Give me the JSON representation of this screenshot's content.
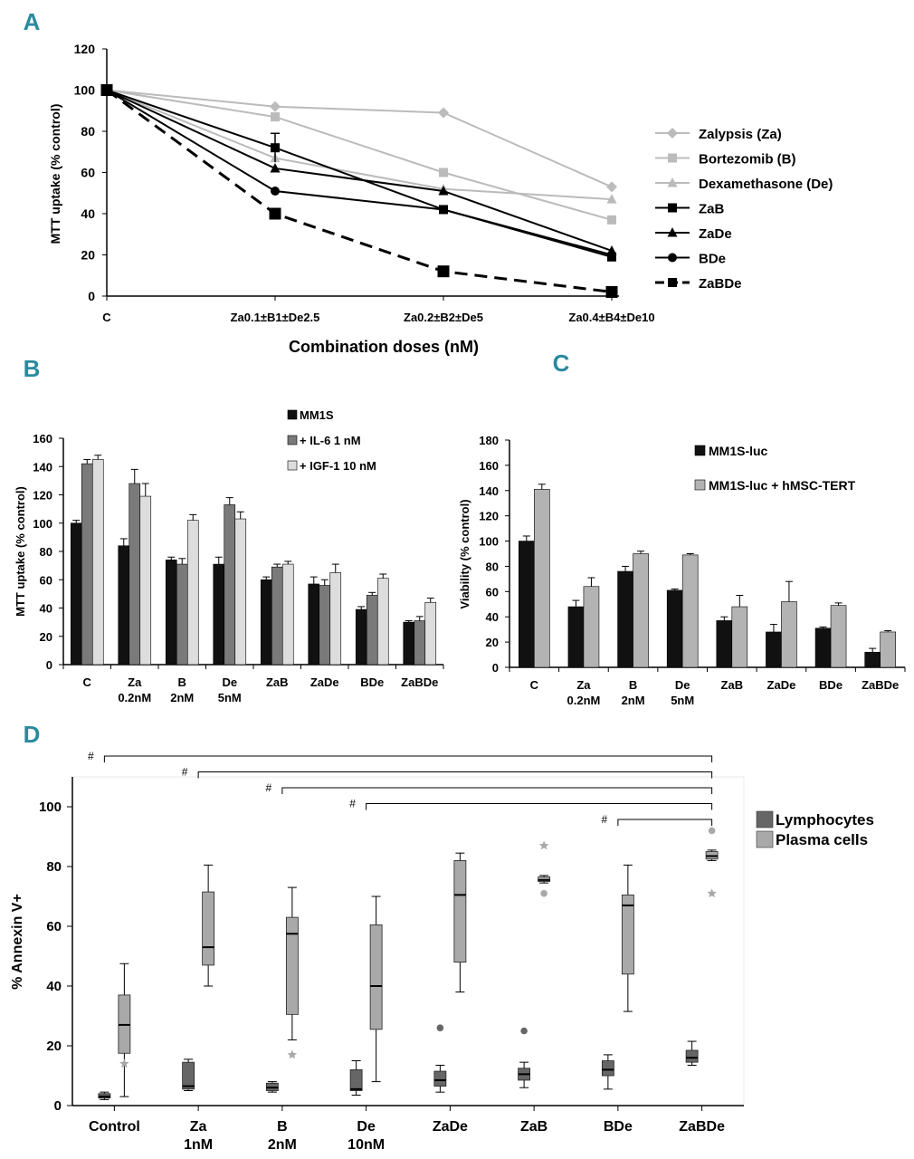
{
  "panels": {
    "A": "A",
    "B": "B",
    "C": "C",
    "D": "D"
  },
  "colors": {
    "black": "#000000",
    "light_grey": "#bbbbbb",
    "mid_grey": "#999999",
    "bar_black": "#111111",
    "bar_dark_grey": "#7a7a7a",
    "bar_light_grey": "#dddddd",
    "bar_mid_grey": "#b3b3b3",
    "box_dark": "#666666",
    "box_light": "#a9a9a9",
    "panel_label": "#2a8a9e"
  },
  "chart_data": [
    {
      "id": "A",
      "type": "line",
      "title": "",
      "xlabel": "Combination doses (nM)",
      "ylabel": "MTT uptake  (% control)",
      "categories": [
        "C",
        "Za0.1±B1±De2.5",
        "Za0.2±B2±De5",
        "Za0.4±B4±De10"
      ],
      "ylim": [
        0,
        120
      ],
      "yticks": [
        0,
        20,
        40,
        60,
        80,
        100,
        120
      ],
      "legend_position": "right",
      "series": [
        {
          "name": "Zalypsis (Za)",
          "values": [
            100,
            92,
            89,
            53
          ],
          "color": "#bbbbbb",
          "marker": "diamond",
          "dashed": false,
          "errors": [
            0,
            0,
            0,
            0
          ]
        },
        {
          "name": "Bortezomib (B)",
          "values": [
            100,
            87,
            60,
            37
          ],
          "color": "#bbbbbb",
          "marker": "square",
          "dashed": false,
          "errors": [
            0,
            0,
            0,
            0
          ]
        },
        {
          "name": "Dexamethasone (De)",
          "values": [
            100,
            67,
            52,
            47
          ],
          "color": "#bbbbbb",
          "marker": "triangle",
          "dashed": false,
          "errors": [
            0,
            0,
            0,
            0
          ]
        },
        {
          "name": "ZaB",
          "values": [
            100,
            72,
            42,
            19
          ],
          "color": "#000000",
          "marker": "square",
          "dashed": false,
          "errors": [
            0,
            7,
            0,
            0
          ]
        },
        {
          "name": "ZaDe",
          "values": [
            100,
            62,
            51,
            22
          ],
          "color": "#000000",
          "marker": "triangle",
          "dashed": false,
          "errors": [
            0,
            0,
            0,
            0
          ]
        },
        {
          "name": "BDe",
          "values": [
            100,
            51,
            42,
            20
          ],
          "color": "#000000",
          "marker": "circle",
          "dashed": false,
          "errors": [
            0,
            0,
            0,
            0
          ]
        },
        {
          "name": "ZaBDe",
          "values": [
            100,
            40,
            12,
            2
          ],
          "color": "#000000",
          "marker": "square",
          "dashed": true,
          "errors": [
            0,
            0,
            0,
            0
          ]
        }
      ]
    },
    {
      "id": "B",
      "type": "bar",
      "title": "",
      "xlabel": "",
      "ylabel": "MTT uptake (% control)",
      "categories": [
        [
          "C"
        ],
        [
          "Za",
          "0.2nM"
        ],
        [
          "B",
          "2nM"
        ],
        [
          "De",
          "5nM"
        ],
        [
          "ZaB"
        ],
        [
          "ZaDe"
        ],
        [
          "BDe"
        ],
        [
          "ZaBDe"
        ]
      ],
      "ylim": [
        0,
        160
      ],
      "yticks": [
        0,
        20,
        40,
        60,
        80,
        100,
        120,
        140,
        160
      ],
      "legend_position": "top-center",
      "series": [
        {
          "name": "MM1S",
          "values": [
            100,
            84,
            74,
            71,
            60,
            57,
            39,
            30
          ],
          "errors": [
            2,
            5,
            2,
            5,
            2,
            5,
            2,
            1
          ],
          "color": "#111111"
        },
        {
          "name": "+ IL-6 1 nM",
          "values": [
            142,
            128,
            71,
            113,
            69,
            56,
            49,
            31
          ],
          "errors": [
            3,
            10,
            4,
            5,
            2,
            4,
            2,
            3
          ],
          "color": "#7a7a7a"
        },
        {
          "name": "+ IGF-1 10 nM",
          "values": [
            145,
            119,
            102,
            103,
            71,
            65,
            61,
            44
          ],
          "errors": [
            3,
            9,
            4,
            5,
            2,
            6,
            3,
            3
          ],
          "color": "#dddddd"
        }
      ]
    },
    {
      "id": "C",
      "type": "bar",
      "title": "",
      "xlabel": "",
      "ylabel": "Viability (%  control)",
      "categories": [
        [
          "C"
        ],
        [
          "Za",
          "0.2nM"
        ],
        [
          "B",
          "2nM"
        ],
        [
          "De",
          "5nM"
        ],
        [
          "ZaB"
        ],
        [
          "ZaDe"
        ],
        [
          "BDe"
        ],
        [
          "ZaBDe"
        ]
      ],
      "ylim": [
        0,
        180
      ],
      "yticks": [
        0,
        20,
        40,
        60,
        80,
        100,
        120,
        140,
        160,
        180
      ],
      "legend_position": "top-right",
      "series": [
        {
          "name": "MM1S-luc",
          "values": [
            100,
            48,
            76,
            61,
            37,
            28,
            31,
            12
          ],
          "errors": [
            4,
            5,
            4,
            1,
            3,
            6,
            1,
            3
          ],
          "color": "#111111"
        },
        {
          "name": "MM1S-luc + hMSC-TERT",
          "values": [
            141,
            64,
            90,
            89,
            48,
            52,
            49,
            28
          ],
          "errors": [
            4,
            7,
            2,
            1,
            9,
            16,
            2,
            1
          ],
          "color": "#b3b3b3"
        }
      ]
    },
    {
      "id": "D",
      "type": "box",
      "title": "",
      "xlabel": "",
      "ylabel": "% Annexin V+",
      "categories": [
        [
          "Control"
        ],
        [
          "Za",
          "1nM"
        ],
        [
          "B",
          "2nM"
        ],
        [
          "De",
          "10nM"
        ],
        [
          "ZaDe"
        ],
        [
          "ZaB"
        ],
        [
          "BDe"
        ],
        [
          "ZaBDe"
        ]
      ],
      "ylim": [
        0,
        110
      ],
      "yticks": [
        0,
        20,
        40,
        60,
        80,
        100
      ],
      "legend_position": "top-right",
      "series": [
        {
          "name": "Lymphocytes",
          "color": "#666666",
          "boxes": [
            {
              "min": 2,
              "q1": 2.5,
              "median": 3,
              "q3": 4,
              "max": 4.5
            },
            {
              "min": 5,
              "q1": 5.5,
              "median": 6.5,
              "q3": 14.5,
              "max": 15.5
            },
            {
              "min": 4.5,
              "q1": 5,
              "median": 6,
              "q3": 7.5,
              "max": 8
            },
            {
              "min": 3.5,
              "q1": 5,
              "median": 5.5,
              "q3": 12,
              "max": 15
            },
            {
              "min": 4.5,
              "q1": 6.5,
              "median": 8.5,
              "q3": 11.5,
              "max": 13.5
            },
            {
              "min": 6,
              "q1": 8.5,
              "median": 10.5,
              "q3": 12.5,
              "max": 14.5
            },
            {
              "min": 5.5,
              "q1": 10,
              "median": 12,
              "q3": 15,
              "max": 17
            },
            {
              "min": 13.5,
              "q1": 14.5,
              "median": 16,
              "q3": 18.5,
              "max": 21.5
            }
          ],
          "outliers": [
            [],
            [],
            [],
            [],
            [
              {
                "value": 26,
                "marker": "circle"
              }
            ],
            [
              {
                "value": 25,
                "marker": "circle"
              }
            ],
            [],
            []
          ]
        },
        {
          "name": "Plasma cells",
          "color": "#a9a9a9",
          "boxes": [
            {
              "min": 3,
              "q1": 17.5,
              "median": 27,
              "q3": 37,
              "max": 47.5
            },
            {
              "min": 40,
              "q1": 47,
              "median": 53,
              "q3": 71.5,
              "max": 80.5
            },
            {
              "min": 22,
              "q1": 30.5,
              "median": 57.5,
              "q3": 63,
              "max": 73
            },
            {
              "min": 8,
              "q1": 25.5,
              "median": 40,
              "q3": 60.5,
              "max": 70
            },
            {
              "min": 38,
              "q1": 48,
              "median": 70.5,
              "q3": 82,
              "max": 84.5
            },
            {
              "min": 74.5,
              "q1": 75,
              "median": 75.5,
              "q3": 76.5,
              "max": 77
            },
            {
              "min": 31.5,
              "q1": 44,
              "median": 67,
              "q3": 70.5,
              "max": 80.5
            },
            {
              "min": 82,
              "q1": 82.5,
              "median": 83.5,
              "q3": 85,
              "max": 85.5
            }
          ],
          "outliers": [
            [
              {
                "value": 14,
                "marker": "star"
              }
            ],
            [],
            [
              {
                "value": 17,
                "marker": "star"
              }
            ],
            [],
            [],
            [
              {
                "value": 87,
                "marker": "star"
              },
              {
                "value": 71,
                "marker": "circle"
              }
            ],
            [],
            [
              {
                "value": 92,
                "marker": "circle"
              },
              {
                "value": 71,
                "marker": "star"
              }
            ]
          ]
        }
      ],
      "significance": [
        {
          "from": 0,
          "to": 7,
          "label": "#"
        },
        {
          "from": 1,
          "to": 7,
          "label": "#"
        },
        {
          "from": 2,
          "to": 7,
          "label": "#"
        },
        {
          "from": 3,
          "to": 7,
          "label": "#"
        },
        {
          "from": 6,
          "to": 7,
          "label": "#"
        }
      ]
    }
  ]
}
